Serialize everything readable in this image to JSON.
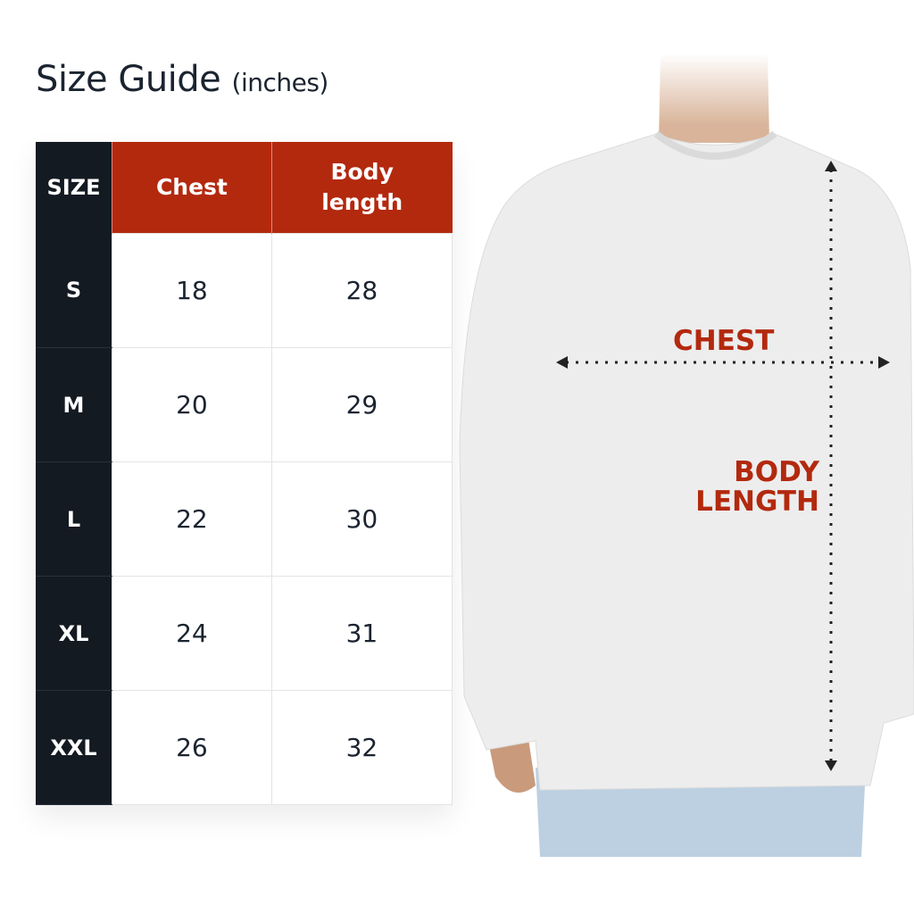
{
  "title": {
    "main": "Size Guide",
    "unit": "(inches)"
  },
  "table": {
    "headers": [
      "SIZE",
      "Chest",
      "Body\nlength"
    ],
    "header_body_line1": "Body",
    "header_body_line2": "length",
    "rows": [
      {
        "size": "S",
        "chest": "18",
        "length": "28"
      },
      {
        "size": "M",
        "chest": "20",
        "length": "29"
      },
      {
        "size": "L",
        "chest": "22",
        "length": "30"
      },
      {
        "size": "XL",
        "chest": "24",
        "length": "31"
      },
      {
        "size": "XXL",
        "chest": "26",
        "length": "32"
      }
    ]
  },
  "diagram": {
    "chest_label": "CHEST",
    "length_line1": "BODY",
    "length_line2": "LENGTH"
  },
  "colors": {
    "accent": "#b3290e",
    "dark": "#141a22"
  }
}
